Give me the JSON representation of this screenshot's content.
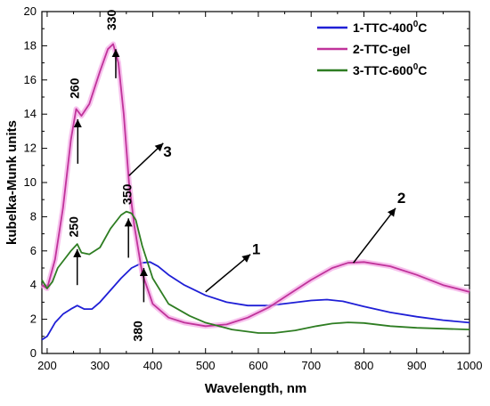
{
  "chart_data": {
    "type": "line",
    "xlabel": "Wavelength, nm",
    "ylabel": "kubelka-Munk units",
    "xlim": [
      190,
      1000
    ],
    "ylim": [
      0,
      20
    ],
    "xticks": [
      200,
      300,
      400,
      500,
      600,
      700,
      800,
      900,
      1000
    ],
    "yticks": [
      0,
      2,
      4,
      6,
      8,
      10,
      12,
      14,
      16,
      18,
      20
    ],
    "grid": false,
    "legend_position": "top-right",
    "series": [
      {
        "name_main": "1-TTC-400",
        "name_sup": "0",
        "name_tail": "C",
        "color": "#1f1fd6",
        "x": [
          190,
          200,
          215,
          230,
          245,
          257,
          270,
          285,
          300,
          320,
          340,
          360,
          380,
          395,
          410,
          430,
          460,
          500,
          540,
          580,
          620,
          660,
          700,
          730,
          760,
          800,
          850,
          900,
          950,
          1000
        ],
        "y": [
          0.8,
          1.0,
          1.8,
          2.3,
          2.6,
          2.8,
          2.6,
          2.6,
          3.0,
          3.7,
          4.4,
          5.0,
          5.3,
          5.35,
          5.1,
          4.6,
          4.0,
          3.4,
          3.0,
          2.8,
          2.8,
          2.95,
          3.1,
          3.15,
          3.05,
          2.75,
          2.4,
          2.15,
          1.95,
          1.8
        ]
      },
      {
        "name_main": "2-TTC-gel",
        "color": "#c0339a",
        "x": [
          190,
          200,
          215,
          230,
          245,
          255,
          265,
          280,
          300,
          315,
          325,
          335,
          345,
          355,
          365,
          380,
          400,
          430,
          460,
          500,
          540,
          580,
          620,
          660,
          700,
          740,
          770,
          800,
          850,
          900,
          950,
          1000
        ],
        "y": [
          4.0,
          3.8,
          5.5,
          8.5,
          12.5,
          14.3,
          13.9,
          14.6,
          16.5,
          17.8,
          18.1,
          17.0,
          14.0,
          10.0,
          7.5,
          4.7,
          2.9,
          2.1,
          1.8,
          1.6,
          1.7,
          2.1,
          2.7,
          3.5,
          4.3,
          5.0,
          5.3,
          5.35,
          5.1,
          4.6,
          4.0,
          3.6
        ]
      },
      {
        "name_main": "3-TTC-600",
        "name_sup": "0",
        "name_tail": "C",
        "color": "#2e7d22",
        "x": [
          190,
          200,
          210,
          220,
          235,
          245,
          257,
          265,
          280,
          300,
          320,
          340,
          350,
          360,
          368,
          380,
          400,
          430,
          470,
          500,
          550,
          600,
          630,
          670,
          710,
          740,
          770,
          800,
          850,
          900,
          950,
          1000
        ],
        "y": [
          4.3,
          3.8,
          4.2,
          5.0,
          5.6,
          6.0,
          6.4,
          5.9,
          5.8,
          6.2,
          7.3,
          8.1,
          8.3,
          8.2,
          7.8,
          6.3,
          4.4,
          2.9,
          2.2,
          1.8,
          1.4,
          1.2,
          1.2,
          1.35,
          1.6,
          1.75,
          1.82,
          1.78,
          1.6,
          1.5,
          1.45,
          1.4
        ]
      }
    ],
    "annotations": [
      {
        "text": "330",
        "x": 330,
        "y": 18.9,
        "rotate": true,
        "arrow_from": [
          330,
          16.1
        ],
        "arrow_to": [
          330,
          17.8
        ]
      },
      {
        "text": "260",
        "x": 260,
        "y": 14.9,
        "rotate": true,
        "arrow_from": [
          258,
          11.1
        ],
        "arrow_to": [
          258,
          13.7
        ]
      },
      {
        "text": "250",
        "x": 258,
        "y": 6.8,
        "rotate": true,
        "arrow_from": [
          257,
          4.0
        ],
        "arrow_to": [
          257,
          6.1
        ]
      },
      {
        "text": "350",
        "x": 360,
        "y": 8.7,
        "rotate": true,
        "arrow_from": [
          354,
          5.6
        ],
        "arrow_to": [
          354,
          7.9
        ]
      },
      {
        "text": "380",
        "x": 380,
        "y": 0.7,
        "rotate": true,
        "arrow_from": [
          383,
          3.0
        ],
        "arrow_to": [
          383,
          5.0
        ]
      }
    ],
    "callouts": [
      {
        "text": "3",
        "x": 428,
        "y": 11.5,
        "arrow_from": [
          355,
          10.4
        ],
        "arrow_to": [
          420,
          12.3
        ]
      },
      {
        "text": "1",
        "x": 596,
        "y": 5.8,
        "arrow_from": [
          500,
          3.6
        ],
        "arrow_to": [
          585,
          5.8
        ]
      },
      {
        "text": "2",
        "x": 871,
        "y": 8.8,
        "arrow_from": [
          780,
          5.3
        ],
        "arrow_to": [
          860,
          8.5
        ]
      }
    ],
    "legend": [
      {
        "main": "1-TTC-400",
        "sup": "0",
        "tail": "C"
      },
      {
        "main": "2-TTC-gel"
      },
      {
        "main": "3-TTC-600",
        "sup": "0",
        "tail": "C"
      }
    ]
  }
}
